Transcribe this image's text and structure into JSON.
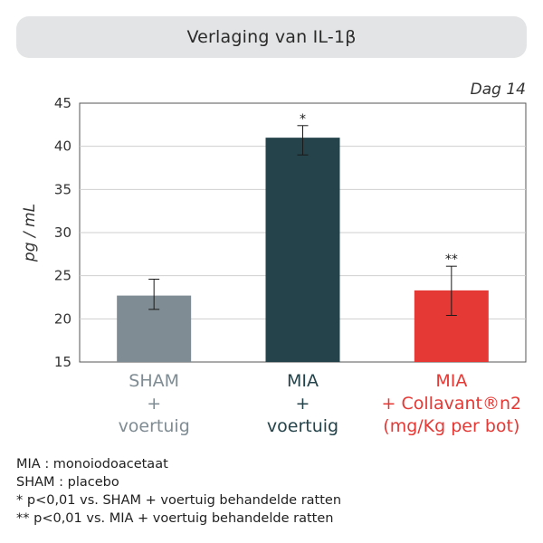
{
  "chart_data": {
    "type": "bar",
    "title": "Verlaging van IL-1β",
    "panel_label": "Dag 14",
    "ylabel": "pg / mL",
    "ylim": [
      15,
      45
    ],
    "yticks": [
      15,
      20,
      25,
      30,
      35,
      40,
      45
    ],
    "grid": true,
    "categories": [
      {
        "lines": [
          "SHAM",
          "+",
          "voertuig"
        ],
        "color": "#7f8c93"
      },
      {
        "lines": [
          "MIA",
          "+",
          "voertuig"
        ],
        "color": "#24434a"
      },
      {
        "lines": [
          "MIA",
          "+ Collavant®n2",
          "(mg/Kg per bot)"
        ],
        "color": "#e53935"
      }
    ],
    "values": [
      22.7,
      41.0,
      23.3
    ],
    "error_low": [
      21.1,
      39.0,
      20.4
    ],
    "error_high": [
      24.6,
      42.4,
      26.1
    ],
    "significance": [
      "",
      "*",
      "**"
    ]
  },
  "footnotes": [
    "MIA : monoiodoacetaat",
    "SHAM : placebo",
    "* p<0,01 vs. SHAM + voertuig behandelde ratten",
    "** p<0,01 vs. MIA + voertuig behandelde ratten"
  ]
}
